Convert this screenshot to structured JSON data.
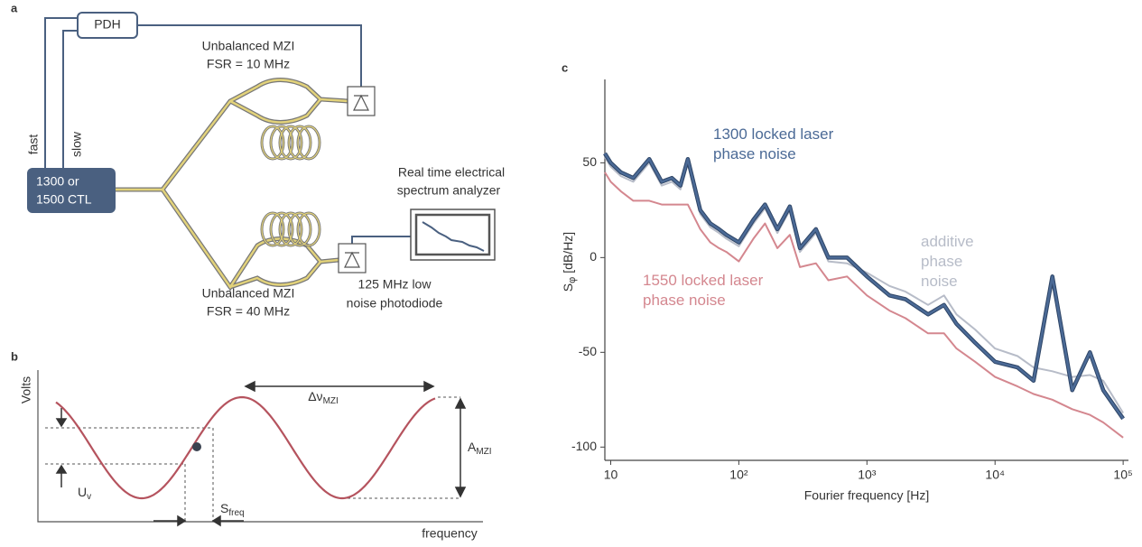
{
  "panel_a": {
    "label": "a",
    "pdh": "PDH",
    "fast": "fast",
    "slow": "slow",
    "laser": [
      "1300 or",
      "1500 CTL"
    ],
    "mzi_top": [
      "Unbalanced MZI",
      "FSR = 10 MHz"
    ],
    "mzi_bottom": [
      "Unbalanced MZI",
      "FSR = 40 MHz"
    ],
    "analyzer": [
      "Real time electrical",
      "spectrum analyzer"
    ],
    "photodiode": [
      "125 MHz low",
      "noise photodiode"
    ]
  },
  "panel_b": {
    "label": "b",
    "y_axis": "Volts",
    "x_axis": "frequency",
    "period": {
      "main": "Δν",
      "sub": "MZI"
    },
    "amplitude": {
      "main": "A",
      "sub": "MZI"
    },
    "voltage": {
      "main": "U",
      "sub": "v"
    },
    "slope": {
      "main": "S",
      "sub": "freq"
    }
  },
  "chart_data": {
    "type": "line",
    "panel_label": "c",
    "xlabel": "Fourier frequency [Hz]",
    "ylabel": {
      "main": "S",
      "sub": "φ",
      "unit": "[dB/Hz]"
    },
    "xscale": "log",
    "xlim": [
      9,
      110000
    ],
    "xticks": [
      10,
      {
        "value": 100,
        "label": "10²"
      },
      {
        "value": 1000,
        "label": "10³"
      },
      {
        "value": 10000,
        "label": "10⁴"
      },
      {
        "value": 100000,
        "label": "10⁵"
      }
    ],
    "ylim": [
      -107,
      94
    ],
    "yticks": [
      50,
      0,
      -50,
      -100
    ],
    "x": [
      9,
      10,
      12,
      15,
      20,
      25,
      30,
      35,
      40,
      50,
      60,
      70,
      80,
      100,
      130,
      160,
      200,
      250,
      300,
      400,
      500,
      700,
      1000,
      1500,
      2000,
      3000,
      4000,
      5000,
      7000,
      10000,
      15000,
      20000,
      28000,
      40000,
      55000,
      70000,
      100000
    ],
    "series": [
      {
        "name": "1550 locked laser phase noise",
        "color": "#d4878f",
        "values": [
          45,
          40,
          35,
          30,
          30,
          28,
          28,
          28,
          28,
          15,
          8,
          5,
          3,
          -2,
          10,
          18,
          5,
          12,
          -5,
          -3,
          -12,
          -10,
          -20,
          -28,
          -32,
          -40,
          -40,
          -48,
          -55,
          -63,
          -68,
          -72,
          -75,
          -80,
          -83,
          -87,
          -95
        ]
      },
      {
        "name": "additive phase noise",
        "color": "#b7bcc8",
        "values": [
          53,
          48,
          43,
          40,
          50,
          38,
          40,
          36,
          50,
          23,
          16,
          13,
          10,
          6,
          18,
          26,
          13,
          25,
          3,
          13,
          -2,
          -3,
          -8,
          -15,
          -18,
          -25,
          -20,
          -30,
          -38,
          -48,
          -52,
          -58,
          -60,
          -63,
          -62,
          -65,
          -82
        ]
      },
      {
        "name": "1300 locked laser phase noise",
        "color": "#4b6a96",
        "values": [
          55,
          50,
          45,
          42,
          52,
          40,
          42,
          38,
          52,
          25,
          18,
          15,
          12,
          8,
          20,
          28,
          15,
          27,
          5,
          15,
          0,
          0,
          -10,
          -20,
          -22,
          -30,
          -25,
          -35,
          -45,
          -55,
          -58,
          -65,
          -10,
          -70,
          -50,
          -70,
          -85
        ]
      }
    ]
  }
}
